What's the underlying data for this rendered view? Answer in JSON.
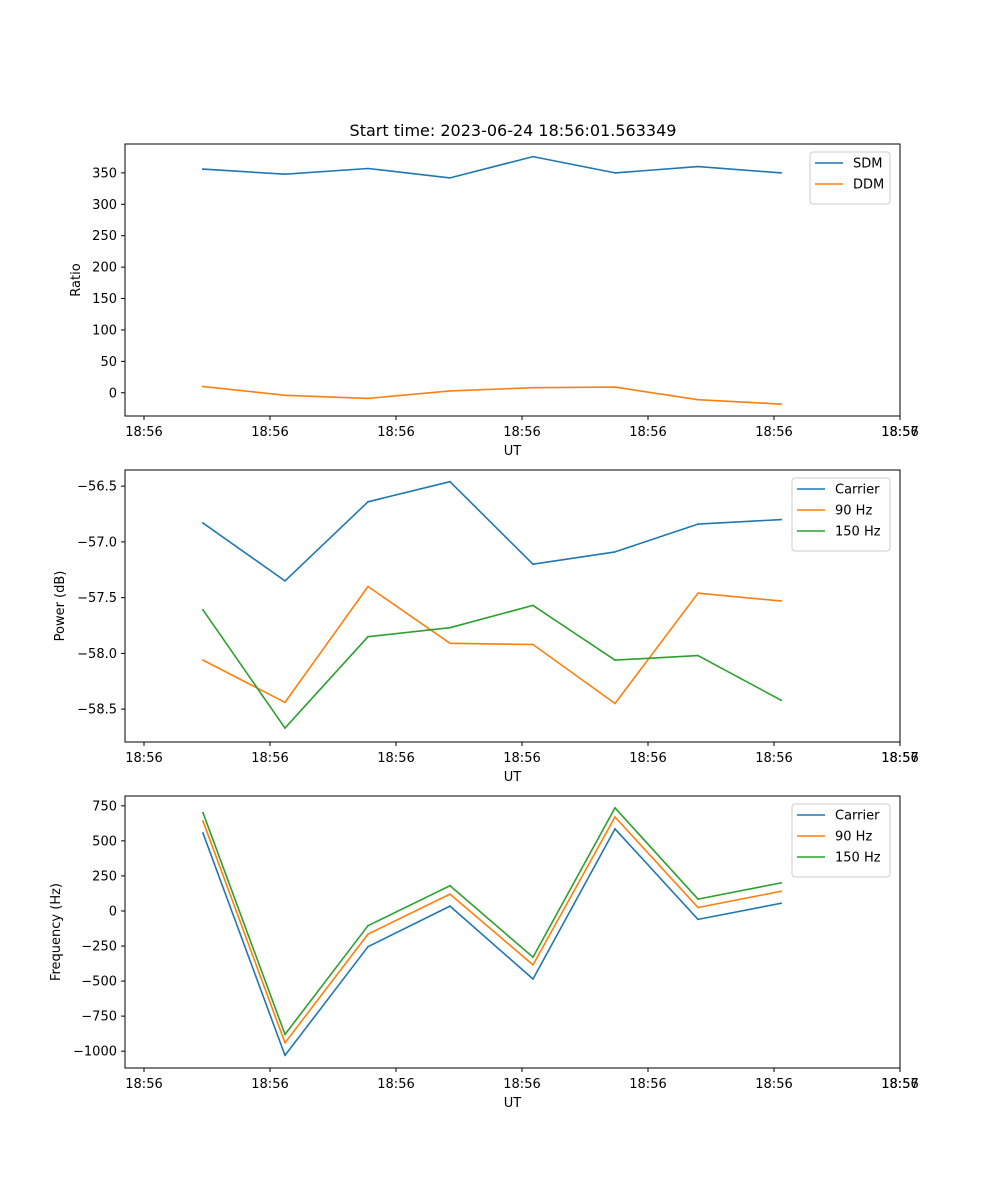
{
  "title": "Start time: 2023-06-24 18:56:01.563349",
  "colors": {
    "blue": "#1f77b4",
    "orange": "#ff7f0e",
    "green": "#2ca02c"
  },
  "chart_data": [
    {
      "type": "line",
      "xlabel": "UT",
      "ylabel": "Ratio",
      "x_tick_labels": [
        "18:56",
        "18:56",
        "18:56",
        "18:56",
        "18:56",
        "18:56",
        "18:56",
        "18:57"
      ],
      "y_ticks": [
        0,
        50,
        100,
        150,
        200,
        250,
        300,
        350
      ],
      "y_tick_labels": [
        "0",
        "50",
        "100",
        "150",
        "200",
        "250",
        "300",
        "350"
      ],
      "ylim": [
        -37,
        396
      ],
      "legend_position": "top-right",
      "series": [
        {
          "name": "SDM",
          "color": "blue",
          "values": [
            356,
            348,
            357,
            342,
            376,
            350,
            360,
            350
          ]
        },
        {
          "name": "DDM",
          "color": "orange",
          "values": [
            10,
            -4,
            -9,
            3,
            8,
            9,
            -11,
            -18
          ]
        }
      ]
    },
    {
      "type": "line",
      "xlabel": "UT",
      "ylabel": "Power (dB)",
      "x_tick_labels": [
        "18:56",
        "18:56",
        "18:56",
        "18:56",
        "18:56",
        "18:56",
        "18:56",
        "18:57"
      ],
      "y_ticks": [
        -58.5,
        -58.0,
        -57.5,
        -57.0,
        -56.5
      ],
      "y_tick_labels": [
        "−58.5",
        "−58.0",
        "−57.5",
        "−57.0",
        "−56.5"
      ],
      "ylim": [
        -58.795,
        -56.355
      ],
      "legend_position": "top-right",
      "series": [
        {
          "name": "Carrier",
          "color": "blue",
          "values": [
            -56.83,
            -57.35,
            -56.64,
            -56.46,
            -57.2,
            -57.09,
            -56.84,
            -56.8
          ]
        },
        {
          "name": "90 Hz",
          "color": "orange",
          "values": [
            -58.06,
            -58.44,
            -57.4,
            -57.91,
            -57.92,
            -58.45,
            -57.46,
            -57.53
          ]
        },
        {
          "name": "150 Hz",
          "color": "green",
          "values": [
            -57.61,
            -58.67,
            -57.85,
            -57.77,
            -57.57,
            -58.06,
            -58.02,
            -58.42
          ]
        }
      ]
    },
    {
      "type": "line",
      "xlabel": "UT",
      "ylabel": "Frequency (Hz)",
      "x_tick_labels": [
        "18:56",
        "18:56",
        "18:56",
        "18:56",
        "18:56",
        "18:56",
        "18:56",
        "18:57"
      ],
      "y_ticks": [
        -1000,
        -750,
        -500,
        -250,
        0,
        250,
        500,
        750
      ],
      "y_tick_labels": [
        "−1000",
        "−750",
        "−500",
        "−250",
        "0",
        "250",
        "500",
        "750"
      ],
      "ylim": [
        -1120,
        820
      ],
      "legend_position": "top-right",
      "series": [
        {
          "name": "Carrier",
          "color": "blue",
          "values": [
            555,
            -1030,
            -255,
            35,
            -485,
            585,
            -60,
            55
          ]
        },
        {
          "name": "90 Hz",
          "color": "orange",
          "values": [
            640,
            -940,
            -165,
            120,
            -385,
            670,
            25,
            140
          ]
        },
        {
          "name": "150 Hz",
          "color": "green",
          "values": [
            700,
            -880,
            -105,
            180,
            -330,
            735,
            85,
            200
          ]
        }
      ]
    }
  ]
}
